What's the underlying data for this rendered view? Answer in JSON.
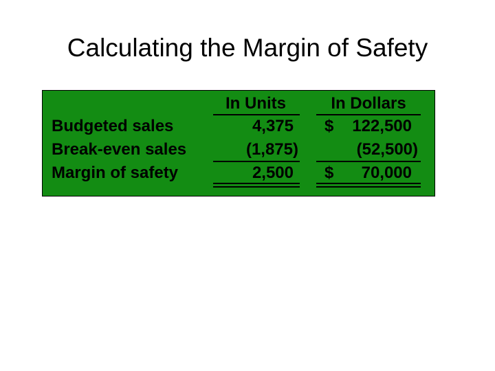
{
  "title": "Calculating the Margin of Safety",
  "colors": {
    "table_background": "#138c13",
    "text": "#000000"
  },
  "table": {
    "headers": {
      "units": "In Units",
      "dollars": "In Dollars"
    },
    "rows": [
      {
        "label": "Budgeted sales",
        "units": "4,375",
        "dollar_sign": "$",
        "dollars": "122,500"
      },
      {
        "label": "Break-even sales",
        "units": "(1,875)",
        "dollar_sign": "",
        "dollars": "(52,500)"
      },
      {
        "label": "Margin of safety",
        "units": "2,500",
        "dollar_sign": "$",
        "dollars": "70,000"
      }
    ]
  }
}
